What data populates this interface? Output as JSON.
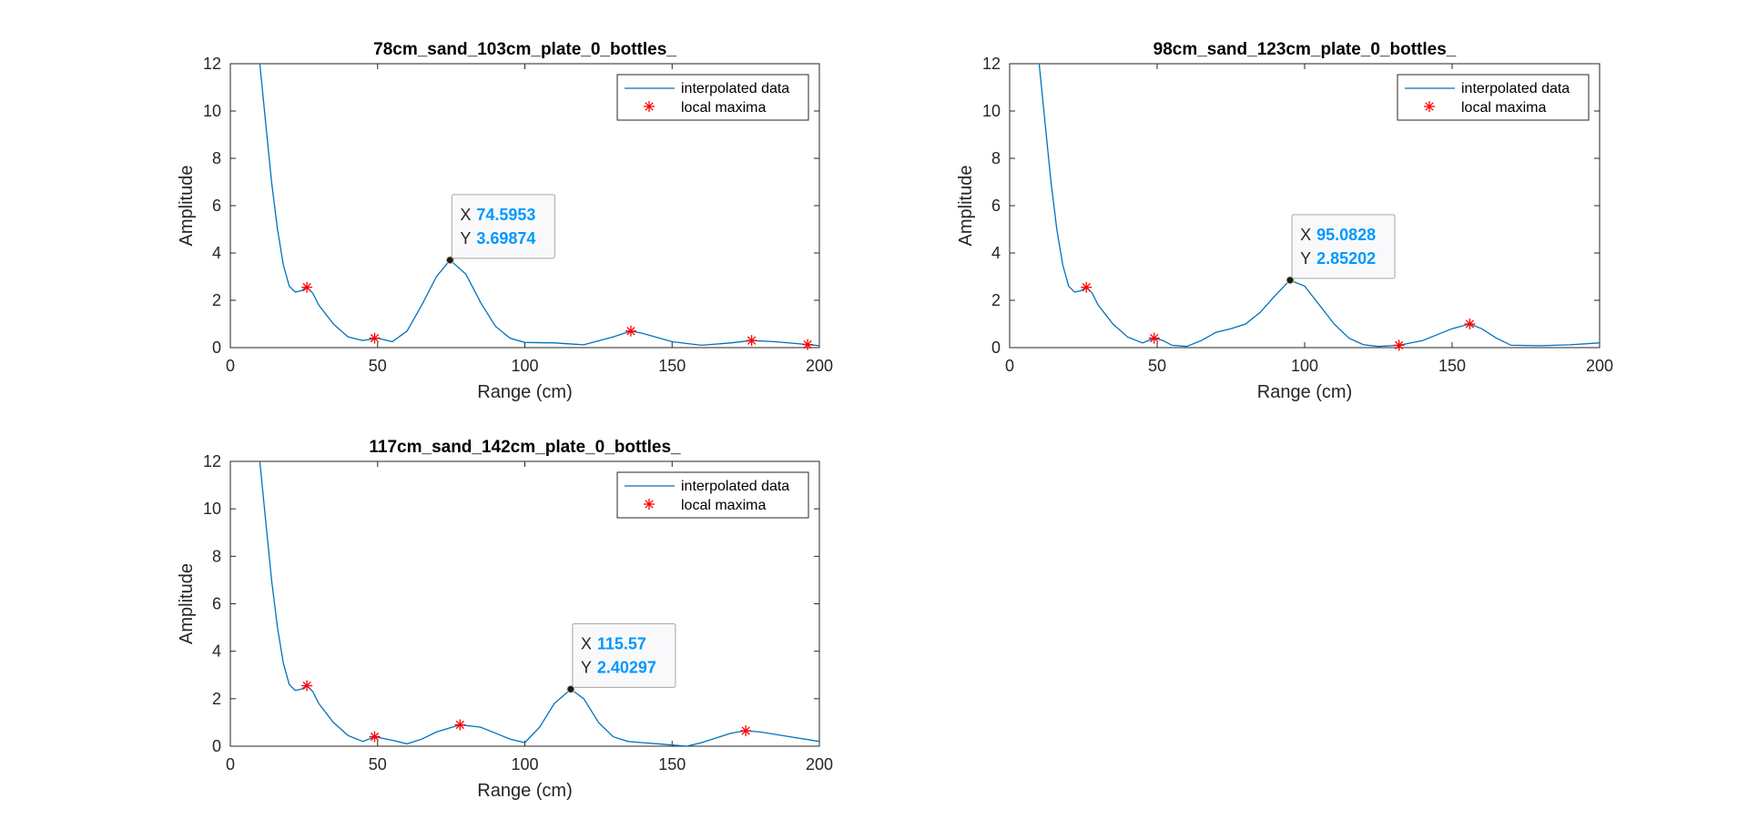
{
  "chart_data": [
    {
      "type": "line",
      "title": "78cm_sand_103cm_plate_0_bottles_",
      "xlabel": "Range (cm)",
      "ylabel": "Amplitude",
      "xlim": [
        0,
        200
      ],
      "ylim": [
        0,
        12
      ],
      "xticks": [
        0,
        50,
        100,
        150,
        200
      ],
      "yticks": [
        0,
        2,
        4,
        6,
        8,
        10,
        12
      ],
      "grid": false,
      "legend_position": "top-right",
      "series": [
        {
          "name": "interpolated data",
          "color": "#0072bd",
          "x": [
            10,
            12,
            14,
            16,
            18,
            20,
            22,
            24,
            26,
            28,
            30,
            35,
            40,
            45,
            50,
            55,
            60,
            65,
            70,
            74.6,
            80,
            85,
            90,
            95,
            100,
            110,
            120,
            130,
            136,
            140,
            150,
            160,
            170,
            177,
            185,
            196,
            200
          ],
          "y": [
            12,
            9.5,
            7.0,
            5.0,
            3.5,
            2.6,
            2.35,
            2.4,
            2.55,
            2.3,
            1.8,
            1.0,
            0.45,
            0.3,
            0.4,
            0.25,
            0.7,
            1.8,
            3.0,
            3.7,
            3.1,
            1.9,
            0.9,
            0.4,
            0.22,
            0.2,
            0.12,
            0.45,
            0.7,
            0.6,
            0.25,
            0.1,
            0.2,
            0.3,
            0.25,
            0.13,
            0.08
          ]
        },
        {
          "name": "local maxima",
          "color": "#ff0000",
          "x": [
            26,
            49,
            136,
            177,
            196
          ],
          "y": [
            2.55,
            0.4,
            0.7,
            0.3,
            0.13
          ]
        }
      ],
      "datatip": {
        "x_label": "X",
        "y_label": "Y",
        "x_text": "74.5953",
        "y_text": "3.69874",
        "x": 74.5953,
        "y": 3.69874
      }
    },
    {
      "type": "line",
      "title": "98cm_sand_123cm_plate_0_bottles_",
      "xlabel": "Range (cm)",
      "ylabel": "Amplitude",
      "xlim": [
        0,
        200
      ],
      "ylim": [
        0,
        12
      ],
      "xticks": [
        0,
        50,
        100,
        150,
        200
      ],
      "yticks": [
        0,
        2,
        4,
        6,
        8,
        10,
        12
      ],
      "grid": false,
      "legend_position": "top-right",
      "series": [
        {
          "name": "interpolated data",
          "color": "#0072bd",
          "x": [
            10,
            12,
            14,
            16,
            18,
            20,
            22,
            24,
            26,
            28,
            30,
            35,
            40,
            45,
            49,
            52,
            55,
            60,
            65,
            70,
            75,
            80,
            85,
            90,
            95,
            100,
            105,
            110,
            115,
            120,
            125,
            132,
            140,
            150,
            156,
            160,
            165,
            170,
            180,
            190,
            200
          ],
          "y": [
            12,
            9.5,
            7.0,
            5.0,
            3.5,
            2.6,
            2.35,
            2.4,
            2.55,
            2.3,
            1.8,
            1.0,
            0.45,
            0.2,
            0.4,
            0.3,
            0.1,
            0.05,
            0.3,
            0.65,
            0.8,
            1.0,
            1.5,
            2.2,
            2.85,
            2.6,
            1.8,
            1.0,
            0.4,
            0.12,
            0.05,
            0.1,
            0.3,
            0.8,
            1.0,
            0.8,
            0.4,
            0.1,
            0.08,
            0.12,
            0.2
          ]
        },
        {
          "name": "local maxima",
          "color": "#ff0000",
          "x": [
            26,
            49,
            132,
            156
          ],
          "y": [
            2.55,
            0.4,
            0.1,
            1.0
          ]
        }
      ],
      "datatip": {
        "x_label": "X",
        "y_label": "Y",
        "x_text": "95.0828",
        "y_text": "2.85202",
        "x": 95.0828,
        "y": 2.85202
      }
    },
    {
      "type": "line",
      "title": "117cm_sand_142cm_plate_0_bottles_",
      "xlabel": "Range (cm)",
      "ylabel": "Amplitude",
      "xlim": [
        0,
        200
      ],
      "ylim": [
        0,
        12
      ],
      "xticks": [
        0,
        50,
        100,
        150,
        200
      ],
      "yticks": [
        0,
        2,
        4,
        6,
        8,
        10,
        12
      ],
      "grid": false,
      "legend_position": "top-right",
      "series": [
        {
          "name": "interpolated data",
          "color": "#0072bd",
          "x": [
            10,
            12,
            14,
            16,
            18,
            20,
            22,
            24,
            26,
            28,
            30,
            35,
            40,
            45,
            49,
            55,
            60,
            65,
            70,
            78,
            85,
            90,
            95,
            100,
            105,
            110,
            115.6,
            120,
            125,
            130,
            135,
            140,
            150,
            155,
            160,
            165,
            170,
            175,
            180,
            190,
            200
          ],
          "y": [
            12,
            9.5,
            7.0,
            5.0,
            3.5,
            2.6,
            2.35,
            2.4,
            2.55,
            2.3,
            1.8,
            1.0,
            0.45,
            0.2,
            0.4,
            0.25,
            0.1,
            0.3,
            0.6,
            0.9,
            0.8,
            0.55,
            0.3,
            0.15,
            0.8,
            1.8,
            2.4,
            2.0,
            1.0,
            0.4,
            0.2,
            0.15,
            0.05,
            0.0,
            0.15,
            0.35,
            0.55,
            0.65,
            0.6,
            0.4,
            0.2
          ]
        },
        {
          "name": "local maxima",
          "color": "#ff0000",
          "x": [
            26,
            49,
            78,
            175
          ],
          "y": [
            2.55,
            0.4,
            0.9,
            0.65
          ]
        }
      ],
      "datatip": {
        "x_label": "X",
        "y_label": "Y",
        "x_text": "115.57",
        "y_text": "2.40297",
        "x": 115.57,
        "y": 2.40297
      }
    }
  ]
}
